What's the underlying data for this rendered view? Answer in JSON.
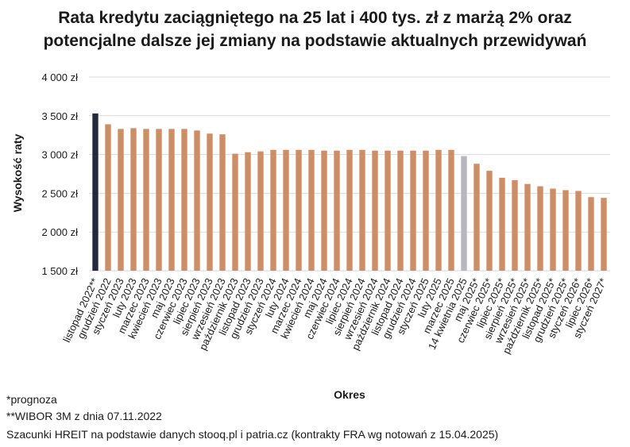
{
  "chart_data": {
    "type": "bar",
    "title": "Rata kredytu zaciągniętego na 25 lat i 400 tys. zł z marżą 2% oraz potencjalne dalsze jej zmiany na podstawie aktualnych przewidywań",
    "title_line1": "Rata kredytu zaciągniętego na 25 lat i 400 tys. zł z marżą 2% oraz",
    "title_line2": "potencjalne dalsze jej zmiany na podstawie aktualnych przewidywań",
    "xlabel": "Okres",
    "ylabel": "Wysokość raty",
    "ylim": [
      1500,
      4000
    ],
    "yticks": [
      1500,
      2000,
      2500,
      3000,
      3500,
      4000
    ],
    "ytick_labels": [
      "1 500 zł",
      "2 000 zł",
      "2 500 zł",
      "3 000 zł",
      "3 500 zł",
      "4 000 zł"
    ],
    "grid": true,
    "legend": "none",
    "categories": [
      "listopad 2022**",
      "grudzień 2022",
      "styczeń 2023",
      "luty 2023",
      "marzec 2023",
      "kwiecień 2023",
      "maj 2023",
      "czerwiec 2023",
      "lipiec 2023",
      "sierpień 2023",
      "wrzesień 2023",
      "październik 2023",
      "listopad 2023",
      "grudzień 2023",
      "styczeń 2024",
      "luty 2024",
      "marzec 2024",
      "kwiecień 2024",
      "maj 2024",
      "czerwiec 2024",
      "lipiec 2024",
      "sierpień 2024",
      "wrzesień 2024",
      "październik 2024",
      "listopad 2024",
      "grudzień 2024",
      "styczeń 2025",
      "luty 2025",
      "marzec 2025",
      "14 kwietnia 2025",
      "maj 2025*",
      "czerwiec 2025*",
      "lipiec 2025*",
      "sierpień 2025*",
      "wrzesień 2025*",
      "październik 2025*",
      "listopad 2025*",
      "grudzień 2025*",
      "styczeń 2026*",
      "lipiec 2026*",
      "styczeń 2027*"
    ],
    "values": [
      3530,
      3390,
      3330,
      3340,
      3330,
      3330,
      3330,
      3330,
      3310,
      3270,
      3260,
      3010,
      3030,
      3040,
      3060,
      3060,
      3060,
      3060,
      3050,
      3050,
      3060,
      3060,
      3050,
      3050,
      3050,
      3050,
      3050,
      3060,
      3060,
      2980,
      2880,
      2790,
      2700,
      2670,
      2620,
      2590,
      2560,
      2540,
      2530,
      2450,
      2440
    ],
    "bar_colors": [
      "#222a3d",
      "#cf8d66",
      "#cf8d66",
      "#cf8d66",
      "#cf8d66",
      "#cf8d66",
      "#cf8d66",
      "#cf8d66",
      "#cf8d66",
      "#cf8d66",
      "#cf8d66",
      "#cf8d66",
      "#cf8d66",
      "#cf8d66",
      "#cf8d66",
      "#cf8d66",
      "#cf8d66",
      "#cf8d66",
      "#cf8d66",
      "#cf8d66",
      "#cf8d66",
      "#cf8d66",
      "#cf8d66",
      "#cf8d66",
      "#cf8d66",
      "#cf8d66",
      "#cf8d66",
      "#cf8d66",
      "#cf8d66",
      "#b8b6be",
      "#cf8d66",
      "#cf8d66",
      "#cf8d66",
      "#cf8d66",
      "#cf8d66",
      "#cf8d66",
      "#cf8d66",
      "#cf8d66",
      "#cf8d66",
      "#cf8d66",
      "#cf8d66"
    ]
  },
  "footnotes": {
    "forecast": "*prognoza",
    "wibor": "**WIBOR 3M z dnia 07.11.2022",
    "source": "Szacunki HREIT na podstawie danych stooq.pl i patria.cz (kontrakty FRA wg notowań z 15.04.2025)"
  }
}
